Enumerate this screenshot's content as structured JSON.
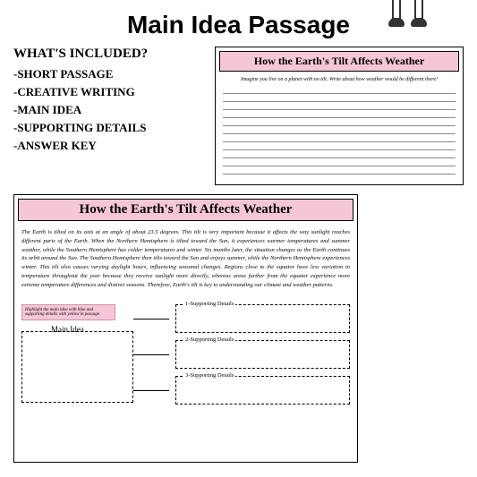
{
  "page_title": "Main Idea Passage",
  "included": {
    "heading": "WHAT'S INCLUDED?",
    "items": [
      "-SHORT PASSAGE",
      "-CREATIVE WRITING",
      "-MAIN IDEA",
      "-SUPPORTING DETAILS",
      "-ANSWER KEY"
    ]
  },
  "worksheet_top": {
    "title": "How the Earth's Tilt Affects Weather",
    "prompt": "Imagine you live on a planet with no tilt. Write about how weather would be different there!",
    "line_count": 11
  },
  "worksheet_bottom": {
    "title": "How the Earth's Tilt Affects Weather",
    "passage": "The Earth is tilted on its axis at an angle of about 23.5 degrees. This tilt is very important because it affects the way sunlight reaches different parts of the Earth. When the Northern Hemisphere is tilted toward the Sun, it experiences warmer temperatures and summer weather, while the Southern Hemisphere has colder temperatures and winter. Six months later, the situation changes as the Earth continues its orbit around the Sun. The Southern Hemisphere then tilts toward the Sun and enjoys summer, while the Northern Hemisphere experiences winter. This tilt also causes varying daylight hours, influencing seasonal changes. Regions close to the equator have less variation in temperature throughout the year because they receive sunlight more directly, whereas areas farther from the equator experience more extreme temperature differences and distinct seasons. Therefore, Earth's tilt is key to understanding our climate and weather patterns.",
    "highlight_instruction": "Highlight the main idea with blue and supporting details with yellow in passage.",
    "main_idea_label": "Main Idea",
    "detail_labels": [
      "1-Supporting Details",
      "2-Supporting Details",
      "3-Supporting Details"
    ]
  },
  "colors": {
    "header_bg": "#f5c6d8",
    "header_border": "#000000",
    "skirt": "#d4974a",
    "book": "#d4664a",
    "hair": "#5a3825",
    "glasses": "#8b1a1a"
  }
}
